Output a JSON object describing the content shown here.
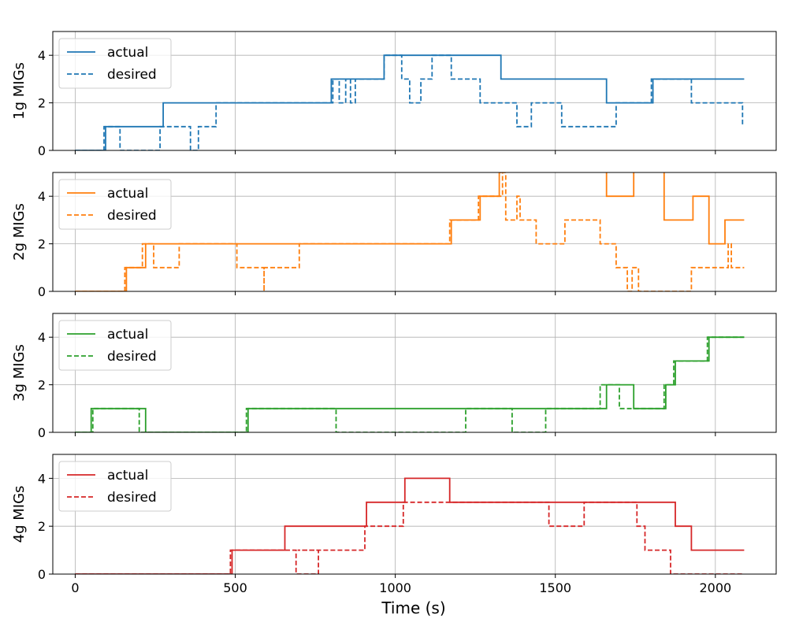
{
  "chart_data": {
    "type": "line",
    "xlabel": "Time (s)",
    "xlim": [
      -70,
      2190
    ],
    "xticks": [
      0,
      500,
      1000,
      1500,
      2000
    ],
    "x_tick_labels": [
      "0",
      "500",
      "1000",
      "1500",
      "2000"
    ],
    "grid": true,
    "legend_position": "upper-left",
    "legend_labels": [
      "actual",
      "desired"
    ],
    "subplots": [
      {
        "ylabel": "1g MIGs",
        "color": "#1f77b4",
        "ylim": [
          0,
          5
        ],
        "yticks": [
          0,
          2,
          4
        ],
        "y_tick_labels": [
          "0",
          "2",
          "4"
        ],
        "series": [
          {
            "name": "actual",
            "style": "solid",
            "points": [
              [
                0,
                0
              ],
              [
                95,
                0
              ],
              [
                95,
                1
              ],
              [
                275,
                1
              ],
              [
                275,
                2
              ],
              [
                800,
                2
              ],
              [
                800,
                3
              ],
              [
                965,
                3
              ],
              [
                965,
                4
              ],
              [
                1330,
                4
              ],
              [
                1330,
                3
              ],
              [
                1660,
                3
              ],
              [
                1660,
                2
              ],
              [
                1805,
                2
              ],
              [
                1805,
                3
              ],
              [
                2090,
                3
              ]
            ]
          },
          {
            "name": "desired",
            "style": "dashed",
            "points": [
              [
                0,
                0
              ],
              [
                90,
                0
              ],
              [
                90,
                1
              ],
              [
                140,
                1
              ],
              [
                140,
                0
              ],
              [
                265,
                0
              ],
              [
                265,
                1
              ],
              [
                360,
                1
              ],
              [
                360,
                0
              ],
              [
                385,
                0
              ],
              [
                385,
                1
              ],
              [
                440,
                1
              ],
              [
                440,
                2
              ],
              [
                805,
                2
              ],
              [
                805,
                3
              ],
              [
                825,
                3
              ],
              [
                825,
                2
              ],
              [
                845,
                2
              ],
              [
                845,
                3
              ],
              [
                860,
                3
              ],
              [
                860,
                2
              ],
              [
                875,
                2
              ],
              [
                875,
                3
              ],
              [
                965,
                3
              ],
              [
                965,
                4
              ],
              [
                1020,
                4
              ],
              [
                1020,
                3
              ],
              [
                1045,
                3
              ],
              [
                1045,
                2
              ],
              [
                1080,
                2
              ],
              [
                1080,
                3
              ],
              [
                1115,
                3
              ],
              [
                1115,
                4
              ],
              [
                1175,
                4
              ],
              [
                1175,
                3
              ],
              [
                1265,
                3
              ],
              [
                1265,
                2
              ],
              [
                1380,
                2
              ],
              [
                1380,
                1
              ],
              [
                1425,
                1
              ],
              [
                1425,
                2
              ],
              [
                1520,
                2
              ],
              [
                1520,
                1
              ],
              [
                1690,
                1
              ],
              [
                1690,
                2
              ],
              [
                1800,
                2
              ],
              [
                1800,
                3
              ],
              [
                1925,
                3
              ],
              [
                1925,
                2
              ],
              [
                2085,
                2
              ],
              [
                2085,
                1
              ]
            ]
          }
        ]
      },
      {
        "ylabel": "2g MIGs",
        "color": "#ff7f0e",
        "ylim": [
          0,
          5
        ],
        "yticks": [
          0,
          2,
          4
        ],
        "y_tick_labels": [
          "0",
          "2",
          "4"
        ],
        "series": [
          {
            "name": "actual",
            "style": "solid",
            "points": [
              [
                0,
                0
              ],
              [
                160,
                0
              ],
              [
                160,
                1
              ],
              [
                220,
                1
              ],
              [
                220,
                2
              ],
              [
                1175,
                2
              ],
              [
                1175,
                3
              ],
              [
                1265,
                3
              ],
              [
                1265,
                4
              ],
              [
                1325,
                4
              ],
              [
                1325,
                5
              ],
              [
                1330,
                5
              ],
              [
                1330,
                5.2
              ],
              [
                1660,
                5.2
              ],
              [
                1660,
                4
              ],
              [
                1745,
                4
              ],
              [
                1745,
                5.2
              ],
              [
                1840,
                5.2
              ],
              [
                1840,
                3
              ],
              [
                1930,
                3
              ],
              [
                1930,
                4
              ],
              [
                1980,
                4
              ],
              [
                1980,
                2
              ],
              [
                2030,
                2
              ],
              [
                2030,
                3
              ],
              [
                2090,
                3
              ]
            ]
          },
          {
            "name": "desired",
            "style": "dashed",
            "points": [
              [
                0,
                0
              ],
              [
                155,
                0
              ],
              [
                155,
                1
              ],
              [
                210,
                1
              ],
              [
                210,
                2
              ],
              [
                245,
                2
              ],
              [
                245,
                1
              ],
              [
                325,
                1
              ],
              [
                325,
                2
              ],
              [
                505,
                2
              ],
              [
                505,
                1
              ],
              [
                590,
                1
              ],
              [
                590,
                0
              ],
              [
                590,
                1
              ],
              [
                700,
                1
              ],
              [
                700,
                2
              ],
              [
                1170,
                2
              ],
              [
                1170,
                3
              ],
              [
                1260,
                3
              ],
              [
                1260,
                4
              ],
              [
                1335,
                4
              ],
              [
                1335,
                5
              ],
              [
                1345,
                5
              ],
              [
                1345,
                3
              ],
              [
                1380,
                3
              ],
              [
                1380,
                4
              ],
              [
                1390,
                4
              ],
              [
                1390,
                3
              ],
              [
                1440,
                3
              ],
              [
                1440,
                2
              ],
              [
                1530,
                2
              ],
              [
                1530,
                3
              ],
              [
                1640,
                3
              ],
              [
                1640,
                2
              ],
              [
                1690,
                2
              ],
              [
                1690,
                1
              ],
              [
                1725,
                1
              ],
              [
                1725,
                0
              ],
              [
                1740,
                0
              ],
              [
                1740,
                1
              ],
              [
                1760,
                1
              ],
              [
                1760,
                0
              ],
              [
                1925,
                0
              ],
              [
                1925,
                1
              ],
              [
                2040,
                1
              ],
              [
                2040,
                2
              ],
              [
                2050,
                2
              ],
              [
                2050,
                1
              ],
              [
                2090,
                1
              ]
            ]
          }
        ]
      },
      {
        "ylabel": "3g MIGs",
        "color": "#2ca02c",
        "ylim": [
          0,
          5
        ],
        "yticks": [
          0,
          2,
          4
        ],
        "y_tick_labels": [
          "0",
          "2",
          "4"
        ],
        "series": [
          {
            "name": "actual",
            "style": "solid",
            "points": [
              [
                0,
                0
              ],
              [
                50,
                0
              ],
              [
                50,
                1
              ],
              [
                220,
                1
              ],
              [
                220,
                0
              ],
              [
                540,
                0
              ],
              [
                540,
                1
              ],
              [
                1660,
                1
              ],
              [
                1660,
                2
              ],
              [
                1745,
                2
              ],
              [
                1745,
                1
              ],
              [
                1845,
                1
              ],
              [
                1845,
                2
              ],
              [
                1875,
                2
              ],
              [
                1875,
                3
              ],
              [
                1980,
                3
              ],
              [
                1980,
                4
              ],
              [
                2090,
                4
              ]
            ]
          },
          {
            "name": "desired",
            "style": "dashed",
            "points": [
              [
                0,
                0
              ],
              [
                55,
                0
              ],
              [
                55,
                1
              ],
              [
                200,
                1
              ],
              [
                200,
                0
              ],
              [
                535,
                0
              ],
              [
                535,
                1
              ],
              [
                815,
                1
              ],
              [
                815,
                0
              ],
              [
                1220,
                0
              ],
              [
                1220,
                1
              ],
              [
                1365,
                1
              ],
              [
                1365,
                0
              ],
              [
                1470,
                0
              ],
              [
                1470,
                1
              ],
              [
                1640,
                1
              ],
              [
                1640,
                2
              ],
              [
                1700,
                2
              ],
              [
                1700,
                1
              ],
              [
                1840,
                1
              ],
              [
                1840,
                2
              ],
              [
                1870,
                2
              ],
              [
                1870,
                3
              ],
              [
                1975,
                3
              ],
              [
                1975,
                4
              ],
              [
                2090,
                4
              ]
            ]
          }
        ]
      },
      {
        "ylabel": "4g MIGs",
        "color": "#d62728",
        "ylim": [
          0,
          5
        ],
        "yticks": [
          0,
          2,
          4
        ],
        "y_tick_labels": [
          "0",
          "2",
          "4"
        ],
        "series": [
          {
            "name": "actual",
            "style": "solid",
            "points": [
              [
                0,
                0
              ],
              [
                490,
                0
              ],
              [
                490,
                1
              ],
              [
                655,
                1
              ],
              [
                655,
                2
              ],
              [
                910,
                2
              ],
              [
                910,
                3
              ],
              [
                1030,
                3
              ],
              [
                1030,
                4
              ],
              [
                1170,
                4
              ],
              [
                1170,
                3
              ],
              [
                1875,
                3
              ],
              [
                1875,
                2
              ],
              [
                1925,
                2
              ],
              [
                1925,
                1
              ],
              [
                2090,
                1
              ]
            ]
          },
          {
            "name": "desired",
            "style": "dashed",
            "points": [
              [
                0,
                0
              ],
              [
                485,
                0
              ],
              [
                485,
                1
              ],
              [
                690,
                1
              ],
              [
                690,
                0
              ],
              [
                760,
                0
              ],
              [
                760,
                1
              ],
              [
                695,
                1
              ],
              [
                695,
                1
              ],
              [
                905,
                1
              ],
              [
                905,
                2
              ],
              [
                1025,
                2
              ],
              [
                1025,
                3
              ],
              [
                1480,
                3
              ],
              [
                1480,
                2
              ],
              [
                1590,
                2
              ],
              [
                1590,
                3
              ],
              [
                1755,
                3
              ],
              [
                1755,
                2
              ],
              [
                1780,
                2
              ],
              [
                1780,
                1
              ],
              [
                1860,
                1
              ],
              [
                1860,
                0
              ],
              [
                2090,
                0
              ]
            ]
          }
        ]
      }
    ]
  }
}
